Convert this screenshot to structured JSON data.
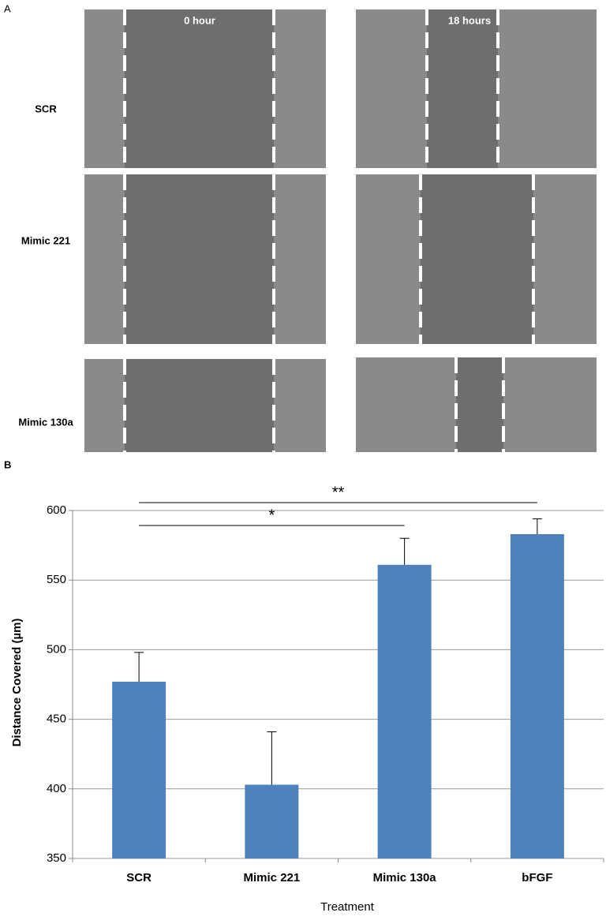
{
  "panel_a": {
    "label": "A",
    "columns": [
      "0 hour",
      "18 hours"
    ],
    "rows": [
      "SCR",
      "Mimic 221",
      "Mimic 130a"
    ]
  },
  "chart_data": {
    "type": "bar",
    "panel_label": "B",
    "x_label": "Treatment",
    "y_label": "Distance Covered (µm)",
    "categories": [
      "SCR",
      "Mimic 221",
      "Mimic 130a",
      "bFGF"
    ],
    "values": [
      477,
      403,
      561,
      583
    ],
    "errors": [
      21,
      38,
      19,
      11
    ],
    "color": "#4f81bd",
    "ylim": [
      350,
      600
    ],
    "yticks": [
      350,
      400,
      450,
      500,
      550,
      600
    ],
    "grid": true,
    "significance": [
      {
        "label": "**",
        "from": "SCR",
        "to": "bFGF"
      },
      {
        "label": "*",
        "from": "SCR",
        "to": "Mimic 130a"
      }
    ]
  }
}
